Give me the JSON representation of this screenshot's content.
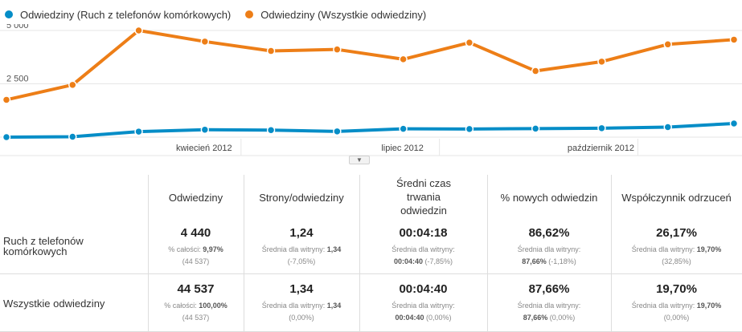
{
  "legend": [
    {
      "label": "Odwiedziny (Ruch z telefonów komórkowych)",
      "color": "#058dc7"
    },
    {
      "label": "Odwiedziny (Wszystkie odwiedziny)",
      "color": "#ed7e17"
    }
  ],
  "chart_data": {
    "type": "line",
    "x_ticks": [
      "kwiecień 2012",
      "lipiec 2012",
      "październik 2012"
    ],
    "y_ticks": [
      "5 000",
      "2 500"
    ],
    "ylim": [
      0,
      5000
    ],
    "series": [
      {
        "name": "Odwiedziny (Ruch z telefonów komórkowych)",
        "color": "#058dc7",
        "values": [
          0,
          20,
          260,
          350,
          330,
          270,
          390,
          380,
          400,
          420,
          470,
          640
        ]
      },
      {
        "name": "Odwiedziny (Wszystkie odwiedziny)",
        "color": "#ed7e17",
        "values": [
          1750,
          2450,
          5000,
          4480,
          4040,
          4110,
          3650,
          4430,
          3100,
          3540,
          4350,
          4570
        ]
      }
    ]
  },
  "collapse_icon": "chevron-down-icon",
  "table": {
    "columns": [
      "Odwiedziny",
      "Strony/odwiedziny",
      "Średni czas trwania odwiedzin",
      "% nowych odwiedzin",
      "Współczynnik odrzuceń"
    ],
    "rows": [
      {
        "label": "Ruch z telefonów komórkowych",
        "cells": [
          {
            "value": "4 440",
            "sub_label": "% całości:",
            "sub_value": "9,97%",
            "sub_extra": "(44 537)"
          },
          {
            "value": "1,24",
            "sub_label": "Średnia dla witryny:",
            "sub_value": "1,34",
            "sub_extra": "(-7,05%)"
          },
          {
            "value": "00:04:18",
            "sub_label": "Średnia dla witryny:",
            "sub_value": "00:04:40",
            "sub_extra": "(-7,85%)"
          },
          {
            "value": "86,62%",
            "sub_label": "Średnia dla witryny:",
            "sub_value": "87,66%",
            "sub_extra": "(-1,18%)"
          },
          {
            "value": "26,17%",
            "sub_label": "Średnia dla witryny:",
            "sub_value": "19,70%",
            "sub_extra": "(32,85%)"
          }
        ]
      },
      {
        "label": "Wszystkie odwiedziny",
        "cells": [
          {
            "value": "44 537",
            "sub_label": "% całości:",
            "sub_value": "100,00%",
            "sub_extra": "(44 537)"
          },
          {
            "value": "1,34",
            "sub_label": "Średnia dla witryny:",
            "sub_value": "1,34",
            "sub_extra": "(0,00%)"
          },
          {
            "value": "00:04:40",
            "sub_label": "Średnia dla witryny:",
            "sub_value": "00:04:40",
            "sub_extra": "(0,00%)"
          },
          {
            "value": "87,66%",
            "sub_label": "Średnia dla witryny:",
            "sub_value": "87,66%",
            "sub_extra": "(0,00%)"
          },
          {
            "value": "19,70%",
            "sub_label": "Średnia dla witryny:",
            "sub_value": "19,70%",
            "sub_extra": "(0,00%)"
          }
        ]
      }
    ]
  }
}
